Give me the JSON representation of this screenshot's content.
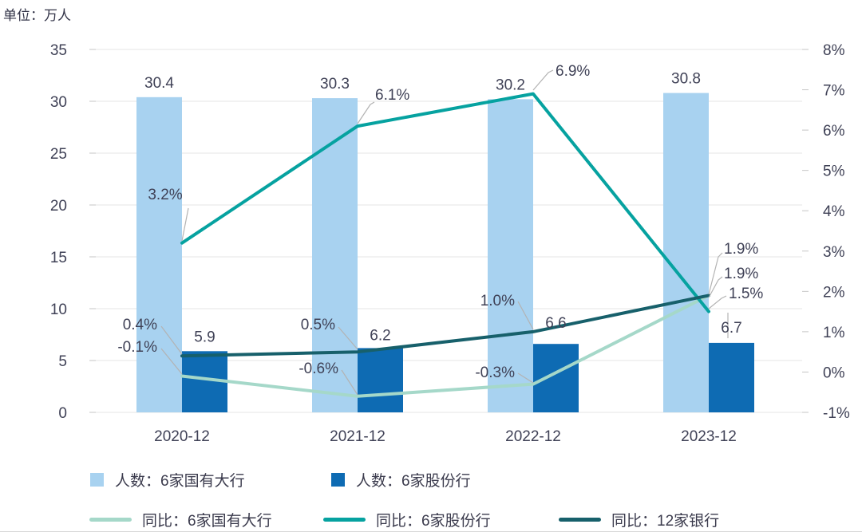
{
  "unit_label": "单位：万人",
  "chart_data": {
    "type": "bar+line-combo",
    "title": "",
    "xlabel": "",
    "ylabel_left": "万人",
    "ylabel_right": "%",
    "grid": true,
    "legend_position": "bottom",
    "categories": [
      "2020-12",
      "2021-12",
      "2022-12",
      "2023-12"
    ],
    "bar_series": [
      {
        "name": "人数：6家国有大行",
        "values": [
          30.4,
          30.3,
          30.2,
          30.8
        ],
        "labels": [
          "30.4",
          "30.3",
          "30.2",
          "30.8"
        ],
        "color": "#a8d2f0",
        "axis": "left"
      },
      {
        "name": "人数：6家股份行",
        "values": [
          5.9,
          6.2,
          6.6,
          6.7
        ],
        "labels": [
          "5.9",
          "6.2",
          "6.6",
          "6.7"
        ],
        "color": "#0e6bb3",
        "axis": "left"
      }
    ],
    "line_series": [
      {
        "name": "同比：6家国有大行",
        "values": [
          -0.1,
          -0.6,
          -0.3,
          1.9
        ],
        "labels": [
          "-0.1%",
          "-0.6%",
          "-0.3%",
          "1.9%"
        ],
        "color": "#a5d8c9",
        "axis": "right"
      },
      {
        "name": "同比：6家股份行",
        "values": [
          3.2,
          6.1,
          6.9,
          1.5
        ],
        "labels": [
          "3.2%",
          "6.1%",
          "6.9%",
          "1.5%"
        ],
        "color": "#06a2a0",
        "axis": "right"
      },
      {
        "name": "同比：12家银行",
        "values": [
          0.4,
          0.5,
          1.0,
          1.9
        ],
        "labels": [
          "0.4%",
          "0.5%",
          "1.0%",
          "1.9%"
        ],
        "color": "#17606b",
        "axis": "right"
      }
    ],
    "left_axis": {
      "min": 0,
      "max": 35,
      "ticks": [
        "35",
        "30",
        "25",
        "20",
        "15",
        "10",
        "5",
        "0"
      ]
    },
    "right_axis": {
      "min": -1,
      "max": 8,
      "ticks": [
        "8%",
        "7%",
        "6%",
        "5%",
        "4%",
        "3%",
        "2%",
        "1%",
        "0%",
        "-1%"
      ]
    }
  },
  "colors": {
    "grid": "#e4e4e4",
    "tick_mark": "#c6c6c6",
    "axis_text": "#3f4156",
    "label_text": "#3f4156",
    "leader_line": "#b3b3b3",
    "background": "#ffffff"
  }
}
